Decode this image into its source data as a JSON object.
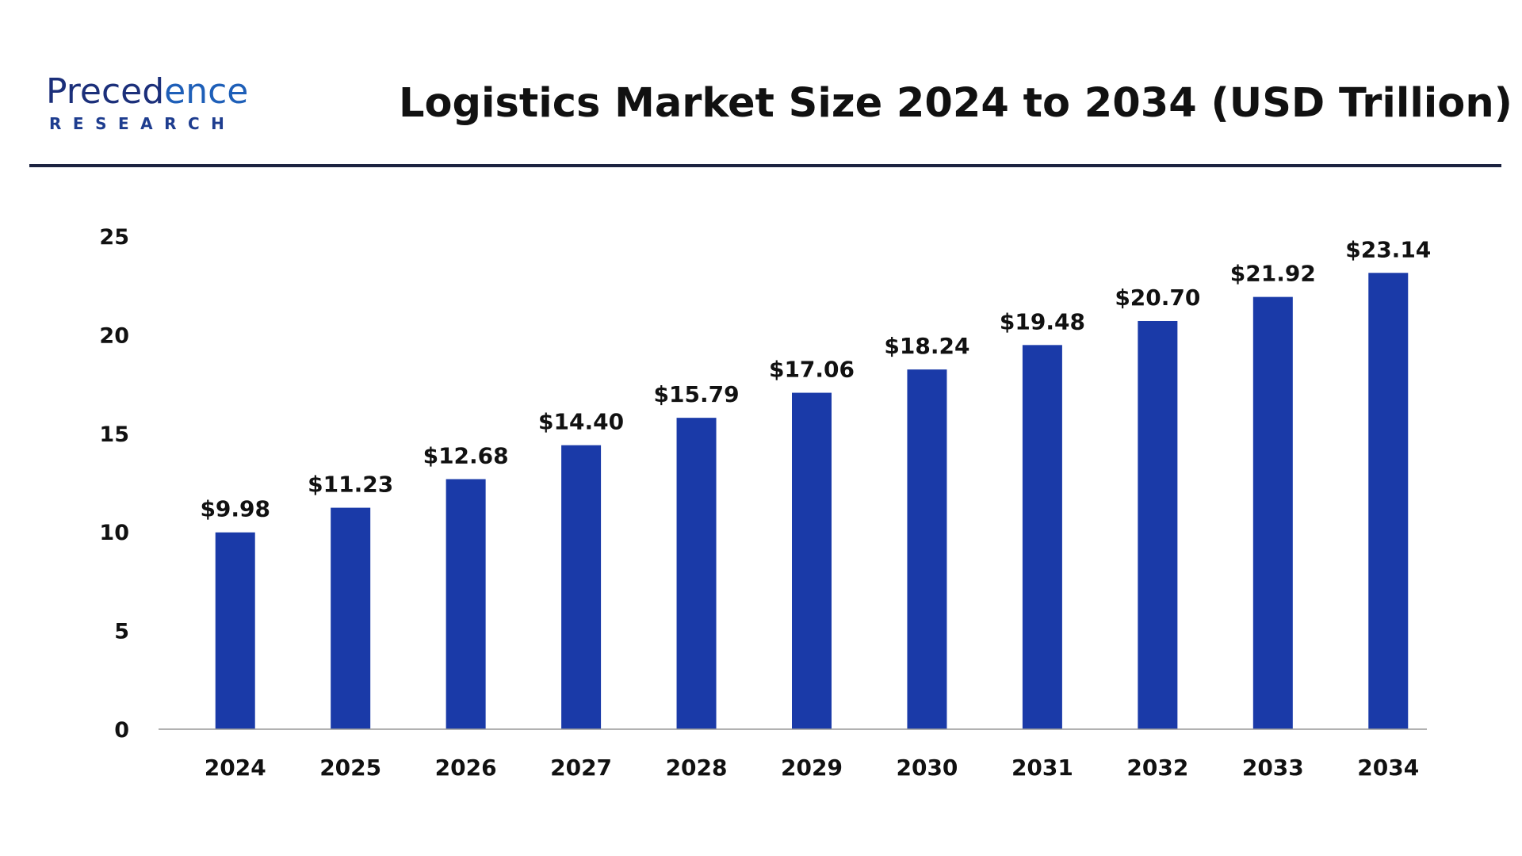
{
  "logo": {
    "main_text": "Precedence",
    "sub_text": "RESEARCH"
  },
  "colors": {
    "bar": "#1a3aa8",
    "rule": "#1c2340",
    "baseline": "#999999",
    "text": "#111111"
  },
  "chart_data": {
    "type": "bar",
    "title": "Logistics Market Size 2024 to 2034 (USD Trillion)",
    "xlabel": "",
    "ylabel": "",
    "categories": [
      "2024",
      "2025",
      "2026",
      "2027",
      "2028",
      "2029",
      "2030",
      "2031",
      "2032",
      "2033",
      "2034"
    ],
    "values": [
      9.98,
      11.23,
      12.68,
      14.4,
      15.79,
      17.06,
      18.24,
      19.48,
      20.7,
      21.92,
      23.14
    ],
    "data_labels": [
      "$9.98",
      "$11.23",
      "$12.68",
      "$14.40",
      "$15.79",
      "$17.06",
      "$18.24",
      "$19.48",
      "$20.70",
      "$21.92",
      "$23.14"
    ],
    "ylim": [
      0,
      25
    ],
    "yticks": [
      "0",
      "5",
      "10",
      "15",
      "20",
      "25"
    ],
    "grid": false,
    "legend": "none"
  }
}
